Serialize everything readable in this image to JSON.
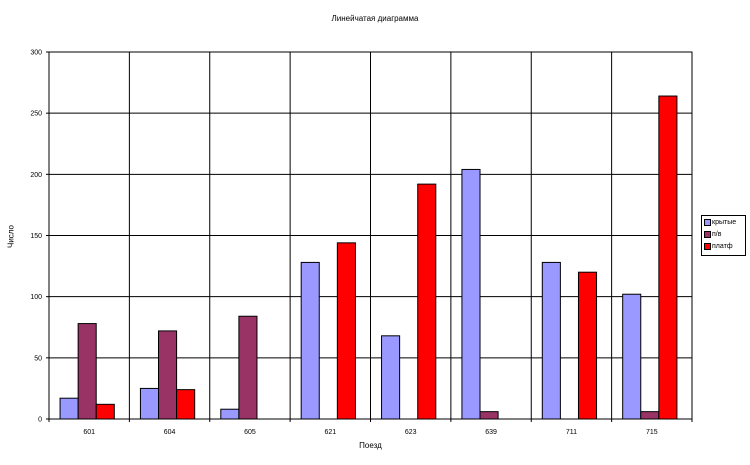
{
  "chart_data": {
    "type": "bar",
    "title": "Линейчатая диаграмма",
    "xlabel": "Поезд",
    "ylabel": "Число",
    "categories": [
      "601",
      "604",
      "605",
      "621",
      "623",
      "639",
      "711",
      "715"
    ],
    "series": [
      {
        "name": "крытые",
        "color": "#9999FF",
        "values": [
          17,
          25,
          8,
          128,
          68,
          204,
          128,
          102
        ]
      },
      {
        "name": "п/в",
        "color": "#993366",
        "values": [
          78,
          72,
          84,
          0,
          0,
          6,
          0,
          6
        ]
      },
      {
        "name": "платф",
        "color": "#FF0000",
        "values": [
          12,
          24,
          0,
          144,
          192,
          0,
          120,
          264
        ]
      }
    ],
    "ylim": [
      0,
      300
    ],
    "yticks": [
      0,
      50,
      100,
      150,
      200,
      250,
      300
    ],
    "grid": true,
    "legend_position": "right"
  }
}
